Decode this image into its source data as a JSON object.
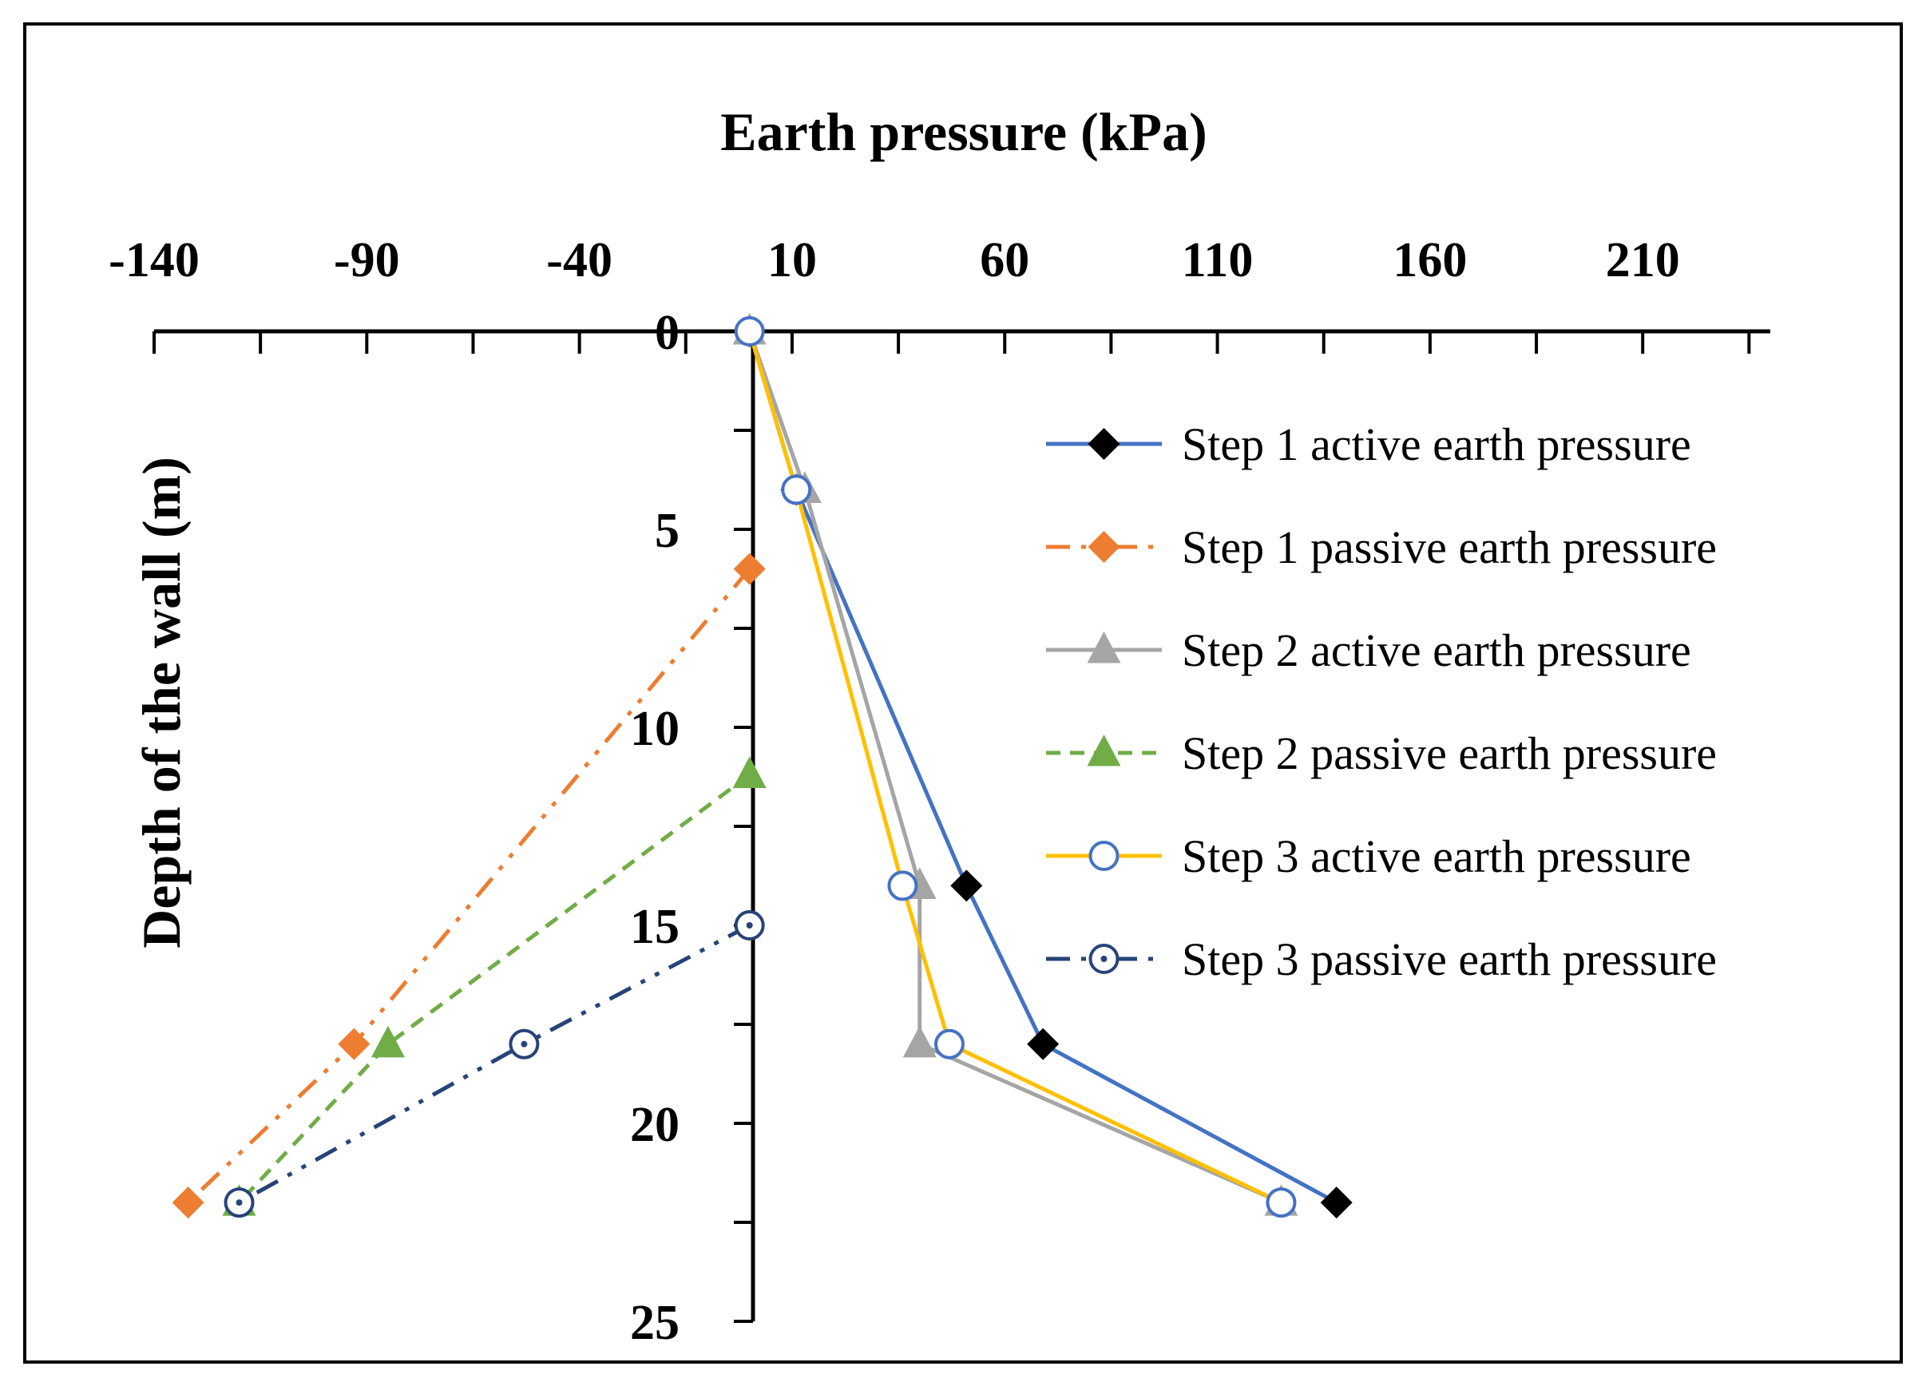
{
  "chart_data": {
    "type": "line",
    "title": "",
    "xlabel": "Earth pressure (kPa)",
    "ylabel": "Depth of the wall (m)",
    "xlim": [
      -140,
      240
    ],
    "ylim": [
      0,
      25
    ],
    "x_ticks": [
      -140,
      -90,
      -40,
      10,
      60,
      110,
      160,
      210
    ],
    "x_tick_labels": [
      "-140",
      "-90",
      "-40",
      "10",
      "60",
      "110",
      "160",
      "210"
    ],
    "y_ticks": [
      0,
      5,
      10,
      15,
      20,
      25
    ],
    "y_tick_labels": [
      "0",
      "5",
      "10",
      "15",
      "20",
      "25"
    ],
    "x_axis_position": "top",
    "grid": false,
    "legend_position": "right",
    "series": [
      {
        "name": "Step 1 active earth pressure",
        "color": "#4472C4",
        "marker": "diamond",
        "marker_color": "#000000",
        "dash": "solid",
        "x": [
          0,
          11,
          51,
          69,
          138
        ],
        "y": [
          0,
          4,
          14,
          18,
          22
        ]
      },
      {
        "name": "Step 1 passive earth pressure",
        "color": "#ED7D31",
        "marker": "diamond",
        "marker_color": "#ED7D31",
        "dash": "dash-dot-dot",
        "x": [
          0,
          -93,
          -132
        ],
        "y": [
          6,
          18,
          22
        ]
      },
      {
        "name": "Step 2 active earth pressure",
        "color": "#A5A5A5",
        "marker": "triangle",
        "marker_color": "#A5A5A5",
        "dash": "solid",
        "x": [
          0,
          13,
          40,
          40,
          125
        ],
        "y": [
          0,
          4,
          14,
          18,
          22
        ]
      },
      {
        "name": "Step 2 passive earth pressure",
        "color": "#70AD47",
        "marker": "triangle",
        "marker_color": "#70AD47",
        "dash": "dashed",
        "x": [
          0,
          -85,
          -120
        ],
        "y": [
          11.2,
          18,
          22
        ]
      },
      {
        "name": "Step 3 active earth pressure",
        "color": "#FFC000",
        "marker": "open-circle",
        "marker_color": "#4472C4",
        "dash": "solid",
        "x": [
          0,
          11,
          36,
          47,
          125
        ],
        "y": [
          0,
          4,
          14,
          18,
          22
        ]
      },
      {
        "name": "Step 3 passive earth pressure",
        "color": "#264478",
        "marker": "open-circle-dot",
        "marker_color": "#264478",
        "dash": "dash-dot-dot",
        "x": [
          0,
          -53,
          -120
        ],
        "y": [
          15,
          18,
          22
        ]
      }
    ]
  }
}
